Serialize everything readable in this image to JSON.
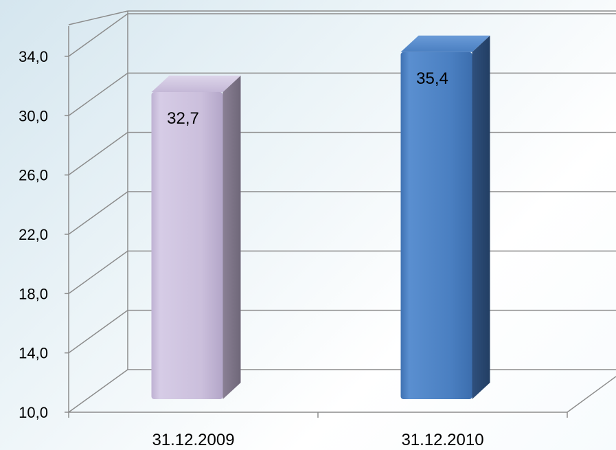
{
  "chart_data": {
    "type": "bar",
    "categories": [
      "31.12.2009",
      "31.12.2010"
    ],
    "values": [
      32.7,
      35.4
    ],
    "data_labels": [
      "32,7",
      "35,4"
    ],
    "ylim": [
      10,
      34
    ],
    "y_ticks": [
      10,
      14,
      18,
      22,
      26,
      30,
      34
    ],
    "y_tick_labels": [
      "10,0",
      "14,0",
      "18,0",
      "22,0",
      "26,0",
      "30,0",
      "34,0"
    ],
    "bar_colors": [
      "#cbbfdc",
      "#4a7fc1"
    ],
    "grid": true,
    "style": "3d-column",
    "legend": "none"
  }
}
